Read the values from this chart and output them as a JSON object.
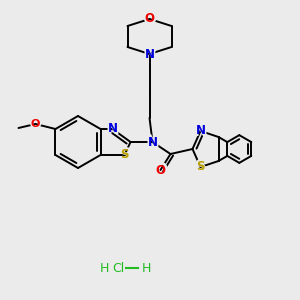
{
  "background_color": "#ebebeb",
  "atom_colors": {
    "S": "#b8a000",
    "N": "#0000dd",
    "O": "#ee0000",
    "C": "#000000",
    "Cl": "#22bb22",
    "H": "#22bb22"
  },
  "bond_color": "#000000",
  "bond_lw": 1.4,
  "figsize": [
    3.0,
    3.0
  ],
  "dpi": 100
}
